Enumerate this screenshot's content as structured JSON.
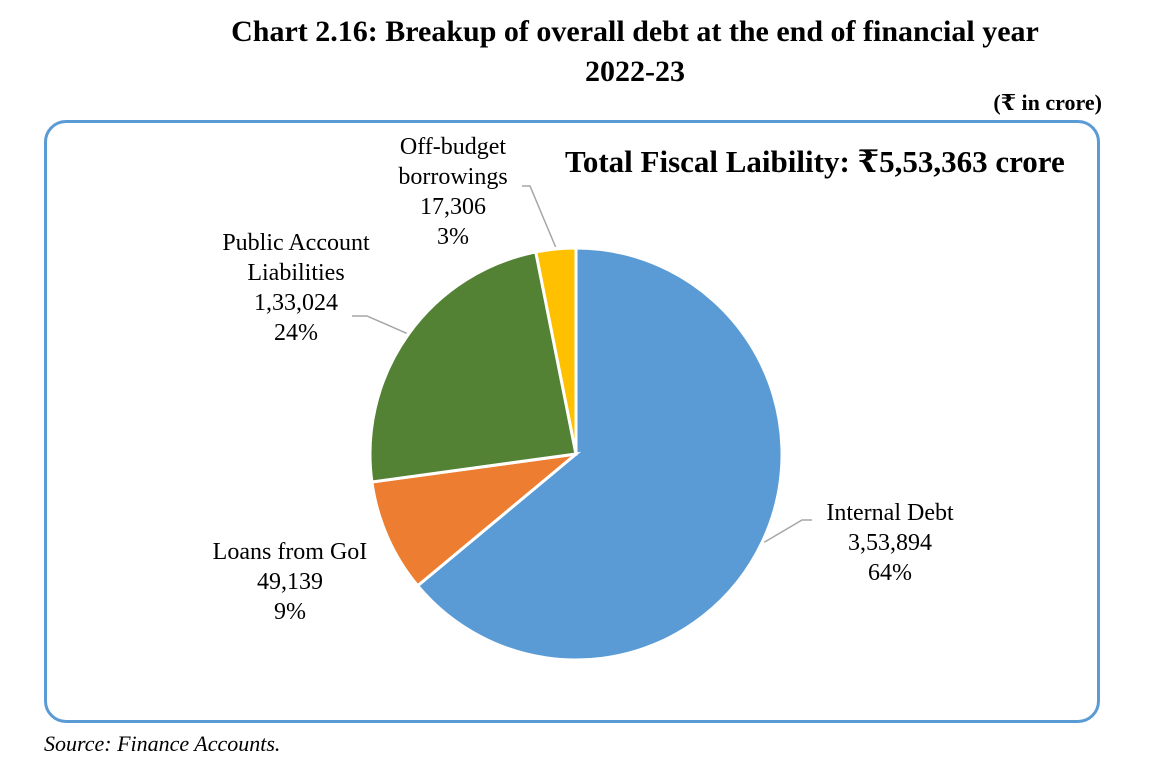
{
  "title_line1": "Chart 2.16: Breakup of overall debt at the end of financial year",
  "title_line2": "2022-23",
  "unit": "(₹ in crore)",
  "total_label": "Total Fiscal Laibility: ₹5,53,363 crore",
  "source": "Source: Finance Accounts.",
  "chart_data": {
    "type": "pie",
    "slices": [
      {
        "label_lines": [
          "Internal Debt"
        ],
        "value": 353894,
        "value_label": "3,53,894",
        "percent": "64%",
        "color": "#5b9bd5"
      },
      {
        "label_lines": [
          "Loans from GoI"
        ],
        "value": 49139,
        "value_label": "49,139",
        "percent": "9%",
        "color": "#ed7d31"
      },
      {
        "label_lines": [
          "Public Account",
          "Liabilities"
        ],
        "value": 133024,
        "value_label": "1,33,024",
        "percent": "24%",
        "color": "#548235"
      },
      {
        "label_lines": [
          "Off-budget",
          "borrowings"
        ],
        "value": 17306,
        "value_label": "17,306",
        "percent": "3%",
        "color": "#ffc000"
      }
    ]
  }
}
